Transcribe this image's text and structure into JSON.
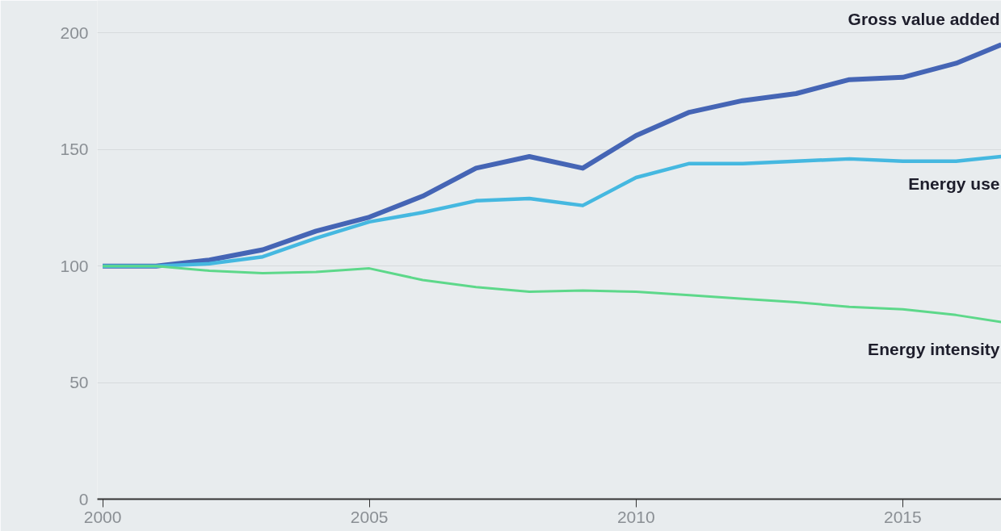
{
  "chart_data": {
    "type": "line",
    "x": [
      2000,
      2001,
      2002,
      2003,
      2004,
      2005,
      2006,
      2007,
      2008,
      2009,
      2010,
      2011,
      2012,
      2013,
      2014,
      2015,
      2016,
      2016.85
    ],
    "series": [
      {
        "name": "Gross value added",
        "color": "#4565b5",
        "values": [
          100,
          100,
          102.6,
          107,
          115,
          121,
          130,
          142,
          147,
          142,
          156,
          166,
          171,
          174,
          180,
          181,
          187,
          195
        ]
      },
      {
        "name": "Energy use",
        "color": "#45b8e0",
        "values": [
          100,
          100,
          101,
          104,
          112,
          119,
          123,
          128,
          129,
          126,
          138,
          144,
          144,
          145,
          146,
          145,
          145,
          147
        ]
      },
      {
        "name": "Energy intensity",
        "color": "#5dd88a",
        "values": [
          100,
          100,
          98,
          97,
          97.5,
          99,
          94,
          91,
          89,
          89.5,
          89,
          87.5,
          86,
          84.5,
          82.5,
          81.5,
          79,
          76
        ]
      }
    ],
    "xlim": [
      1999.9,
      2016.85
    ],
    "ylim": [
      0,
      214
    ],
    "xticks": [
      2000,
      2005,
      2010,
      2015
    ],
    "yticks": [
      0,
      50,
      100,
      150,
      200
    ],
    "grid": "y",
    "legend": false,
    "marker": "none",
    "line_style": "solid"
  }
}
